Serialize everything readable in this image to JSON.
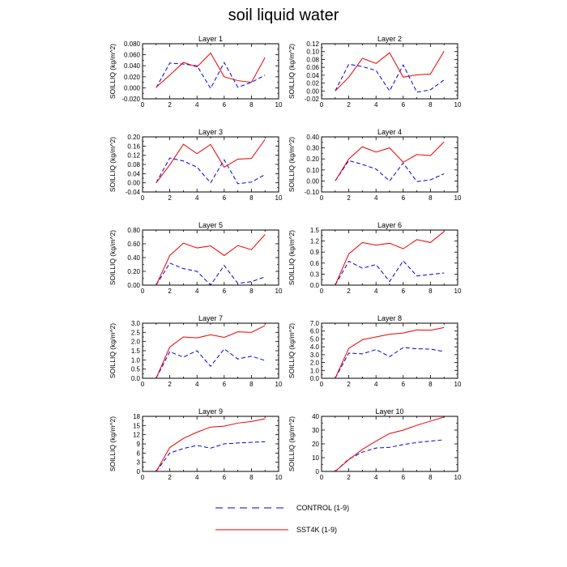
{
  "title": "soil liquid water",
  "chart_data": {
    "type": "line",
    "x": [
      1,
      2,
      3,
      4,
      5,
      6,
      7,
      8,
      9
    ],
    "xlim": [
      0,
      10
    ],
    "xticks": [
      0,
      2,
      4,
      6,
      8,
      10
    ],
    "ylabel": "SOILLIQ  (kg/m^2)",
    "legend": [
      {
        "name": "CONTROL (1-9)",
        "color": "#0000dd",
        "style": "dashed"
      },
      {
        "name": "SST4K (1-9)",
        "color": "#ee0000",
        "style": "solid"
      }
    ],
    "panels": [
      {
        "title": "Layer 1",
        "ylim": [
          -0.02,
          0.08
        ],
        "yticks": [
          "-0.020",
          "0.000",
          "0.020",
          "0.040",
          "0.060",
          "0.080"
        ],
        "series": [
          {
            "name": "CONTROL (1-9)",
            "values": [
              0.0,
              0.045,
              0.043,
              0.04,
              -0.001,
              0.046,
              0.001,
              0.01,
              0.023
            ]
          },
          {
            "name": "SST4K (1-9)",
            "values": [
              0.001,
              0.023,
              0.046,
              0.038,
              0.063,
              0.02,
              0.013,
              0.01,
              0.055
            ]
          }
        ]
      },
      {
        "title": "Layer 2",
        "ylim": [
          -0.02,
          0.12
        ],
        "yticks": [
          "-0.02",
          "0.00",
          "0.02",
          "0.04",
          "0.06",
          "0.08",
          "0.10",
          "0.12"
        ],
        "series": [
          {
            "name": "CONTROL (1-9)",
            "values": [
              0.0,
              0.068,
              0.062,
              0.052,
              0.0,
              0.066,
              -0.003,
              0.003,
              0.028
            ]
          },
          {
            "name": "SST4K (1-9)",
            "values": [
              0.0,
              0.035,
              0.083,
              0.07,
              0.097,
              0.035,
              0.041,
              0.043,
              0.101
            ]
          }
        ]
      },
      {
        "title": "Layer 3",
        "ylim": [
          -0.04,
          0.2
        ],
        "yticks": [
          "-0.04",
          "0.00",
          "0.04",
          "0.08",
          "0.12",
          "0.16",
          "0.20"
        ],
        "series": [
          {
            "name": "CONTROL (1-9)",
            "values": [
              0.0,
              0.108,
              0.095,
              0.068,
              0.0,
              0.1,
              -0.004,
              0.003,
              0.036
            ]
          },
          {
            "name": "SST4K (1-9)",
            "values": [
              0.0,
              0.078,
              0.168,
              0.127,
              0.167,
              0.068,
              0.103,
              0.106,
              0.189
            ]
          }
        ]
      },
      {
        "title": "Layer 4",
        "ylim": [
          -0.1,
          0.4
        ],
        "yticks": [
          "-0.10",
          "0.00",
          "0.10",
          "0.20",
          "0.30",
          "0.40"
        ],
        "series": [
          {
            "name": "CONTROL (1-9)",
            "values": [
              0.0,
              0.185,
              0.15,
              0.108,
              0.0,
              0.163,
              -0.005,
              0.01,
              0.065
            ]
          },
          {
            "name": "SST4K (1-9)",
            "values": [
              0.0,
              0.2,
              0.31,
              0.262,
              0.3,
              0.17,
              0.24,
              0.23,
              0.355
            ]
          }
        ]
      },
      {
        "title": "Layer 5",
        "ylim": [
          0,
          0.8
        ],
        "yticks": [
          "0.00",
          "0.20",
          "0.40",
          "0.60",
          "0.80"
        ],
        "series": [
          {
            "name": "CONTROL (1-9)",
            "values": [
              0.0,
              0.32,
              0.24,
              0.2,
              0.0,
              0.285,
              0.025,
              0.05,
              0.12
            ]
          },
          {
            "name": "SST4K (1-9)",
            "values": [
              0.0,
              0.43,
              0.61,
              0.54,
              0.57,
              0.43,
              0.575,
              0.515,
              0.735
            ]
          }
        ]
      },
      {
        "title": "Layer 6",
        "ylim": [
          0,
          1.5
        ],
        "yticks": [
          "0.0",
          "0.3",
          "0.6",
          "0.9",
          "1.2",
          "1.5"
        ],
        "series": [
          {
            "name": "CONTROL (1-9)",
            "values": [
              0.0,
              0.65,
              0.46,
              0.56,
              0.1,
              0.66,
              0.25,
              0.29,
              0.33
            ]
          },
          {
            "name": "SST4K (1-9)",
            "values": [
              0.0,
              0.85,
              1.16,
              1.09,
              1.14,
              0.99,
              1.24,
              1.16,
              1.46
            ]
          }
        ]
      },
      {
        "title": "Layer 7",
        "ylim": [
          0,
          3.0
        ],
        "yticks": [
          "0.0",
          "0.5",
          "1.0",
          "1.5",
          "2.0",
          "2.5",
          "3.0"
        ],
        "series": [
          {
            "name": "CONTROL (1-9)",
            "values": [
              0.0,
              1.45,
              1.15,
              1.5,
              0.65,
              1.6,
              1.05,
              1.2,
              0.97
            ]
          },
          {
            "name": "SST4K (1-9)",
            "values": [
              0.0,
              1.7,
              2.25,
              2.2,
              2.37,
              2.23,
              2.53,
              2.5,
              2.87
            ]
          }
        ]
      },
      {
        "title": "Layer 8",
        "ylim": [
          0,
          7.0
        ],
        "yticks": [
          "0.0",
          "1.0",
          "2.0",
          "3.0",
          "4.0",
          "5.0",
          "6.0",
          "7.0"
        ],
        "series": [
          {
            "name": "CONTROL (1-9)",
            "values": [
              0.0,
              3.2,
              3.1,
              3.65,
              2.75,
              3.9,
              3.75,
              3.7,
              3.4
            ]
          },
          {
            "name": "SST4K (1-9)",
            "values": [
              0.0,
              3.8,
              4.9,
              5.25,
              5.6,
              5.75,
              6.15,
              6.1,
              6.45
            ]
          }
        ]
      },
      {
        "title": "Layer 9",
        "ylim": [
          0,
          18
        ],
        "yticks": [
          "0",
          "3",
          "6",
          "9",
          "12",
          "15",
          "18"
        ],
        "series": [
          {
            "name": "CONTROL (1-9)",
            "values": [
              0.0,
              6.0,
              7.5,
              8.5,
              7.6,
              9.0,
              9.3,
              9.5,
              9.7
            ]
          },
          {
            "name": "SST4K (1-9)",
            "values": [
              0.0,
              7.8,
              10.8,
              12.8,
              14.5,
              14.8,
              15.8,
              16.3,
              17.2
            ]
          }
        ]
      },
      {
        "title": "Layer 10",
        "ylim": [
          0,
          40
        ],
        "yticks": [
          "0",
          "10",
          "20",
          "30",
          "40"
        ],
        "series": [
          {
            "name": "CONTROL (1-9)",
            "values": [
              0.0,
              9.0,
              14.0,
              17.0,
              17.5,
              19.5,
              21.0,
              22.0,
              23.0
            ]
          },
          {
            "name": "SST4K (1-9)",
            "values": [
              0.0,
              8.5,
              16.0,
              22.0,
              27.5,
              30.0,
              33.5,
              36.5,
              39.5
            ]
          }
        ]
      }
    ]
  }
}
